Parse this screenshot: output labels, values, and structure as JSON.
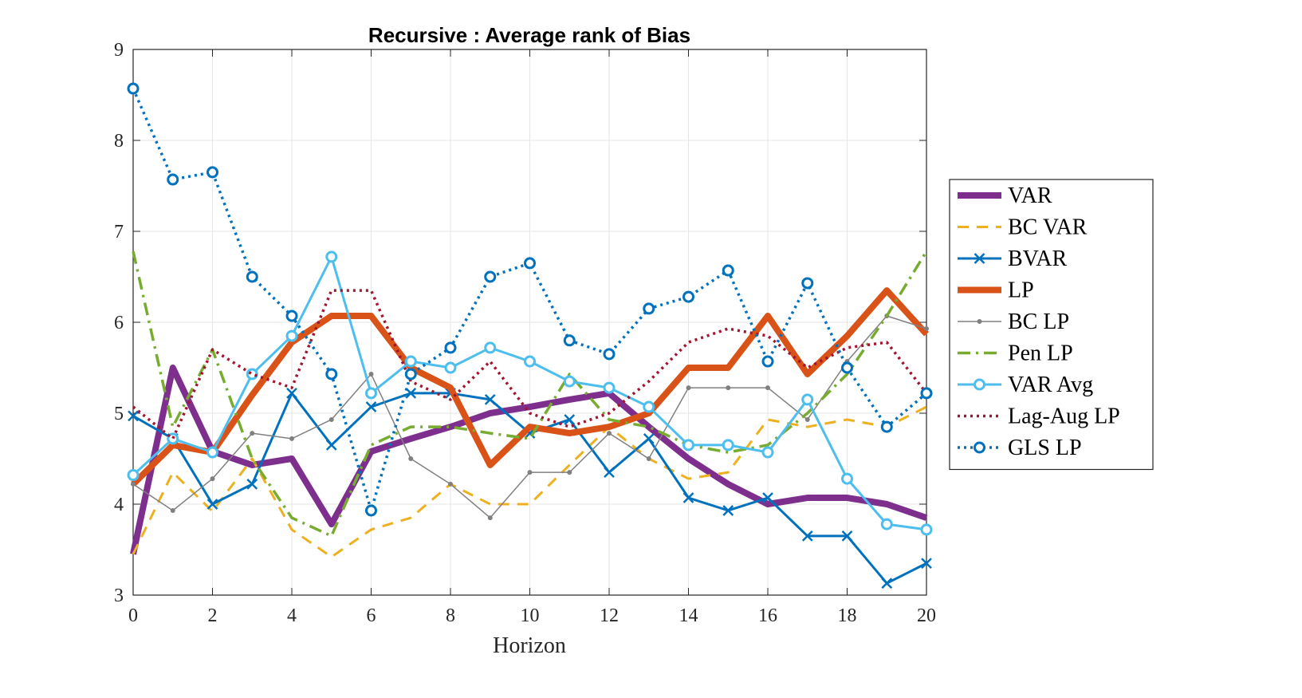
{
  "chart_data": {
    "type": "line",
    "title": "Recursive : Average rank of Bias",
    "xlabel": "Horizon",
    "ylabel": "",
    "xlim": [
      0,
      20
    ],
    "ylim": [
      3,
      9
    ],
    "xticks": [
      "0",
      "2",
      "4",
      "6",
      "8",
      "10",
      "12",
      "14",
      "16",
      "18",
      "20"
    ],
    "yticks": [
      "3",
      "4",
      "5",
      "6",
      "7",
      "8",
      "9"
    ],
    "grid": true,
    "legend_position": "right",
    "x": [
      0,
      1,
      2,
      3,
      4,
      5,
      6,
      7,
      8,
      9,
      10,
      11,
      12,
      13,
      14,
      15,
      16,
      17,
      18,
      19,
      20
    ],
    "series": [
      {
        "name": "VAR",
        "color": "#7E2F8E",
        "style": "solid-thick",
        "marker": "none",
        "values": [
          3.45,
          5.5,
          4.58,
          4.43,
          4.5,
          3.78,
          4.58,
          4.72,
          4.85,
          5.0,
          5.07,
          5.15,
          5.22,
          4.85,
          4.5,
          4.22,
          4.0,
          4.07,
          4.07,
          4.0,
          3.85
        ]
      },
      {
        "name": "BC VAR",
        "color": "#EDB120",
        "style": "dashed",
        "marker": "none",
        "values": [
          3.45,
          4.35,
          3.92,
          4.5,
          3.72,
          3.42,
          3.72,
          3.85,
          4.22,
          4.0,
          4.0,
          4.43,
          4.85,
          4.5,
          4.28,
          4.35,
          4.93,
          4.85,
          4.93,
          4.85,
          5.07
        ]
      },
      {
        "name": "BVAR",
        "color": "#0072BD",
        "style": "solid",
        "marker": "x",
        "values": [
          4.97,
          4.72,
          4.0,
          4.22,
          5.22,
          4.65,
          5.07,
          5.22,
          5.22,
          5.15,
          4.78,
          4.93,
          4.35,
          4.72,
          4.07,
          3.93,
          4.07,
          3.65,
          3.65,
          3.13,
          3.35
        ]
      },
      {
        "name": "LP",
        "color": "#D95319",
        "style": "solid-thick",
        "marker": "none",
        "values": [
          4.22,
          4.65,
          4.57,
          5.2,
          5.78,
          6.07,
          6.07,
          5.5,
          5.28,
          4.43,
          4.85,
          4.78,
          4.85,
          5.0,
          5.5,
          5.5,
          6.07,
          5.43,
          5.85,
          6.35,
          5.87
        ]
      },
      {
        "name": "BC LP",
        "color": "#808080",
        "style": "solid-thin",
        "marker": "dot",
        "values": [
          4.22,
          3.93,
          4.28,
          4.78,
          4.72,
          4.93,
          5.43,
          4.5,
          4.22,
          3.85,
          4.35,
          4.35,
          4.78,
          4.5,
          5.28,
          5.28,
          5.28,
          4.93,
          5.57,
          6.07,
          5.93
        ]
      },
      {
        "name": "Pen LP",
        "color": "#77AC30",
        "style": "dashdot",
        "marker": "none",
        "values": [
          6.78,
          4.85,
          5.7,
          4.5,
          3.85,
          3.65,
          4.65,
          4.85,
          4.85,
          4.78,
          4.72,
          5.43,
          4.93,
          4.85,
          4.65,
          4.57,
          4.65,
          5.0,
          5.43,
          6.07,
          6.78
        ]
      },
      {
        "name": "VAR Avg",
        "color": "#4DBEEE",
        "style": "solid",
        "marker": "o",
        "values": [
          4.32,
          4.72,
          4.57,
          5.43,
          5.85,
          6.72,
          5.22,
          5.57,
          5.5,
          5.72,
          5.57,
          5.35,
          5.28,
          5.07,
          4.65,
          4.65,
          4.57,
          5.15,
          4.28,
          3.78,
          3.72
        ]
      },
      {
        "name": "Lag-Aug LP",
        "color": "#A2142F",
        "style": "dotted",
        "marker": "none",
        "values": [
          5.07,
          4.72,
          5.7,
          5.43,
          5.28,
          6.35,
          6.35,
          5.35,
          5.15,
          5.57,
          5.0,
          4.85,
          5.0,
          5.35,
          5.78,
          5.93,
          5.85,
          5.5,
          5.72,
          5.78,
          5.22
        ]
      },
      {
        "name": "GLS LP",
        "color": "#0072BD",
        "style": "dotted",
        "marker": "o",
        "values": [
          8.57,
          7.57,
          7.65,
          6.5,
          6.07,
          5.43,
          3.93,
          5.43,
          5.72,
          6.5,
          6.65,
          5.8,
          5.65,
          6.15,
          6.28,
          6.57,
          5.57,
          6.43,
          5.5,
          4.85,
          5.22
        ]
      }
    ]
  }
}
